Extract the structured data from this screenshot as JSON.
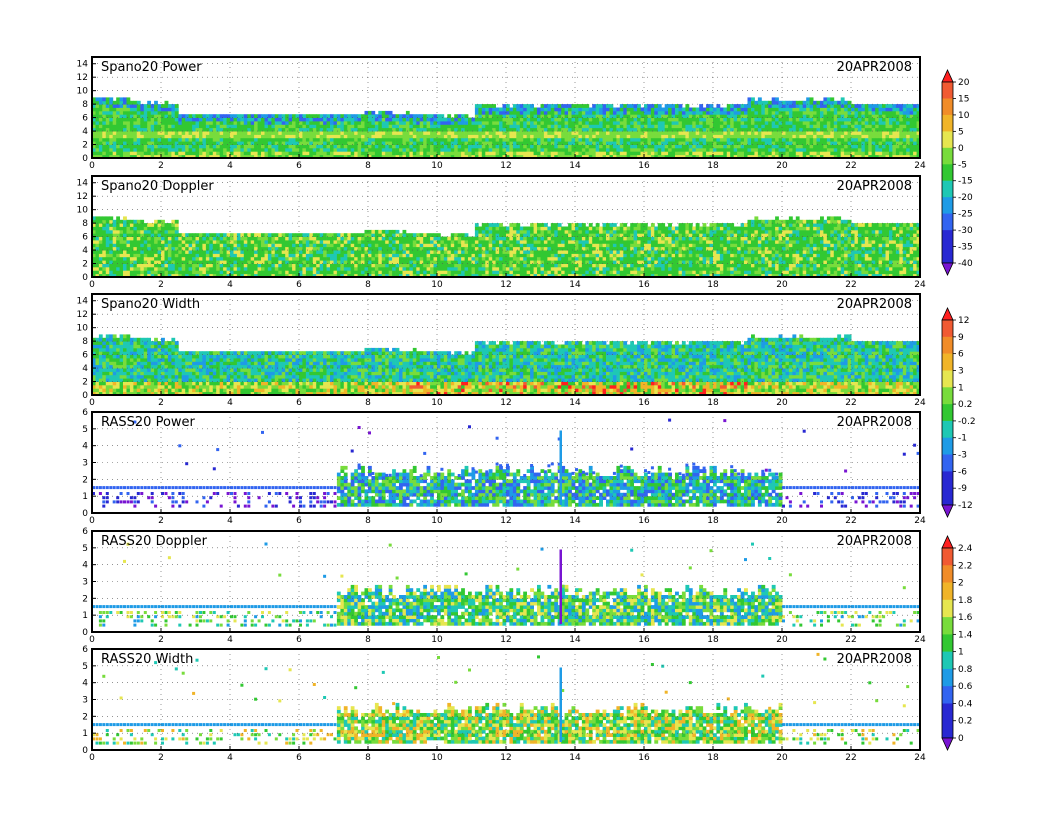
{
  "chart_data": [
    {
      "type": "heatmap",
      "title": "Spano20  Power",
      "date": "20APR2008",
      "x_ticks": [
        0,
        2,
        4,
        6,
        8,
        10,
        12,
        14,
        16,
        18,
        20,
        22,
        24
      ],
      "xlim": [
        0,
        24
      ],
      "y_ticks": [
        0,
        2,
        4,
        6,
        8,
        10,
        12,
        14
      ],
      "ylim": [
        0,
        15
      ],
      "kind": "spano_power",
      "colorbar_group": 0,
      "grid": true
    },
    {
      "type": "heatmap",
      "title": "Spano20  Doppler",
      "date": "20APR2008",
      "x_ticks": [
        0,
        2,
        4,
        6,
        8,
        10,
        12,
        14,
        16,
        18,
        20,
        22,
        24
      ],
      "xlim": [
        0,
        24
      ],
      "y_ticks": [
        0,
        2,
        4,
        6,
        8,
        10,
        12,
        14
      ],
      "ylim": [
        0,
        15
      ],
      "kind": "spano_doppler",
      "colorbar_group": 0,
      "grid": true
    },
    {
      "type": "heatmap",
      "title": "Spano20  Width",
      "date": "20APR2008",
      "x_ticks": [
        0,
        2,
        4,
        6,
        8,
        10,
        12,
        14,
        16,
        18,
        20,
        22,
        24
      ],
      "xlim": [
        0,
        24
      ],
      "y_ticks": [
        0,
        2,
        4,
        6,
        8,
        10,
        12,
        14
      ],
      "ylim": [
        0,
        15
      ],
      "kind": "spano_width",
      "colorbar_group": 1,
      "grid": true
    },
    {
      "type": "heatmap",
      "title": "RASS20  Power",
      "date": "20APR2008",
      "x_ticks": [
        0,
        2,
        4,
        6,
        8,
        10,
        12,
        14,
        16,
        18,
        20,
        22,
        24
      ],
      "xlim": [
        0,
        24
      ],
      "y_ticks": [
        0,
        1,
        2,
        3,
        4,
        5,
        6
      ],
      "ylim": [
        0,
        6
      ],
      "kind": "rass_power",
      "colorbar_group": 1,
      "grid": true
    },
    {
      "type": "heatmap",
      "title": "RASS20  Doppler",
      "date": "20APR2008",
      "x_ticks": [
        0,
        2,
        4,
        6,
        8,
        10,
        12,
        14,
        16,
        18,
        20,
        22,
        24
      ],
      "xlim": [
        0,
        24
      ],
      "y_ticks": [
        0,
        1,
        2,
        3,
        4,
        5,
        6
      ],
      "ylim": [
        0,
        6
      ],
      "kind": "rass_doppler",
      "colorbar_group": 2,
      "grid": true
    },
    {
      "type": "heatmap",
      "title": "RASS20  Width",
      "date": "20APR2008",
      "x_ticks": [
        0,
        2,
        4,
        6,
        8,
        10,
        12,
        14,
        16,
        18,
        20,
        22,
        24
      ],
      "xlim": [
        0,
        24
      ],
      "y_ticks": [
        0,
        1,
        2,
        3,
        4,
        5,
        6
      ],
      "ylim": [
        0,
        6
      ],
      "kind": "rass_width",
      "colorbar_group": 2,
      "grid": true
    }
  ],
  "colorbars": [
    {
      "labels": [
        "20",
        "15",
        "10",
        "5",
        "0",
        "-5",
        "-15",
        "-20",
        "-25",
        "-30",
        "-35",
        "-40"
      ],
      "colors": [
        "#ff1f1f",
        "#f05a32",
        "#f08c28",
        "#f0b428",
        "#e6e650",
        "#78dc3c",
        "#32c832",
        "#1ec8b4",
        "#1e9be6",
        "#3264f0",
        "#2828d2",
        "#7814d2"
      ]
    },
    {
      "labels": [
        "12",
        "9",
        "6",
        "3",
        "1",
        "0.2",
        "-0.2",
        "-1",
        "-3",
        "-6",
        "-9",
        "-12"
      ],
      "colors": [
        "#ff1f1f",
        "#f05a32",
        "#f08c28",
        "#f0b428",
        "#e6e650",
        "#78dc3c",
        "#32c832",
        "#1ec8b4",
        "#1e9be6",
        "#3264f0",
        "#2828d2",
        "#7814d2"
      ]
    },
    {
      "labels": [
        "2.4",
        "2.2",
        "2",
        "1.8",
        "1.6",
        "1.4",
        "1",
        "0.8",
        "0.6",
        "0.4",
        "0.2",
        "0"
      ],
      "colors": [
        "#ff1f1f",
        "#f05a32",
        "#f08c28",
        "#f0b428",
        "#e6e650",
        "#78dc3c",
        "#32c832",
        "#1ec8b4",
        "#1e9be6",
        "#3264f0",
        "#2828d2",
        "#7814d2"
      ]
    }
  ]
}
